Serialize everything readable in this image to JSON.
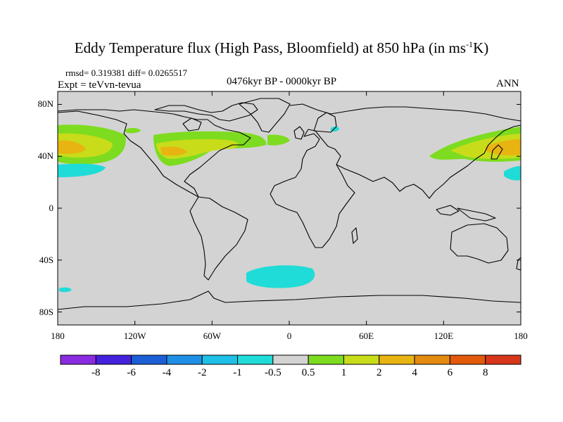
{
  "title": {
    "main": "Eddy Temperature flux (High Pass, Bloomfield) at 850 hPa (in ms",
    "sup": "-1",
    "end": "K)"
  },
  "stats": "rmsd= 0.319381 diff= 0.0265517",
  "expt": "Expt = teVvn-tevua",
  "period": "0476kyr BP - 0000kyr BP",
  "season": "ANN",
  "map": {
    "lat_labels": [
      "80N",
      "40N",
      "0",
      "40S",
      "80S"
    ],
    "lat_values": [
      80,
      40,
      0,
      -40,
      -80
    ],
    "lon_labels": [
      "180",
      "120W",
      "60W",
      "0",
      "60E",
      "120E",
      "180"
    ],
    "lon_values": [
      -180,
      -120,
      -60,
      0,
      60,
      120,
      180
    ],
    "lat_range": [
      -90,
      90
    ],
    "lon_range": [
      -180,
      180
    ],
    "background_color": "#d3d3d3"
  },
  "colorbar": {
    "labels": [
      "-8",
      "-6",
      "-4",
      "-2",
      "-1",
      "-0.5",
      "0.5",
      "1",
      "2",
      "4",
      "6",
      "8"
    ],
    "colors": [
      "#8a2be2",
      "#4422dd",
      "#1b5fd6",
      "#1e90e6",
      "#1ec0e8",
      "#20dcd8",
      "#d3d3d3",
      "#7ddc1f",
      "#c8dc1a",
      "#e8b412",
      "#e48a10",
      "#e45a0c",
      "#d8361a"
    ]
  }
}
